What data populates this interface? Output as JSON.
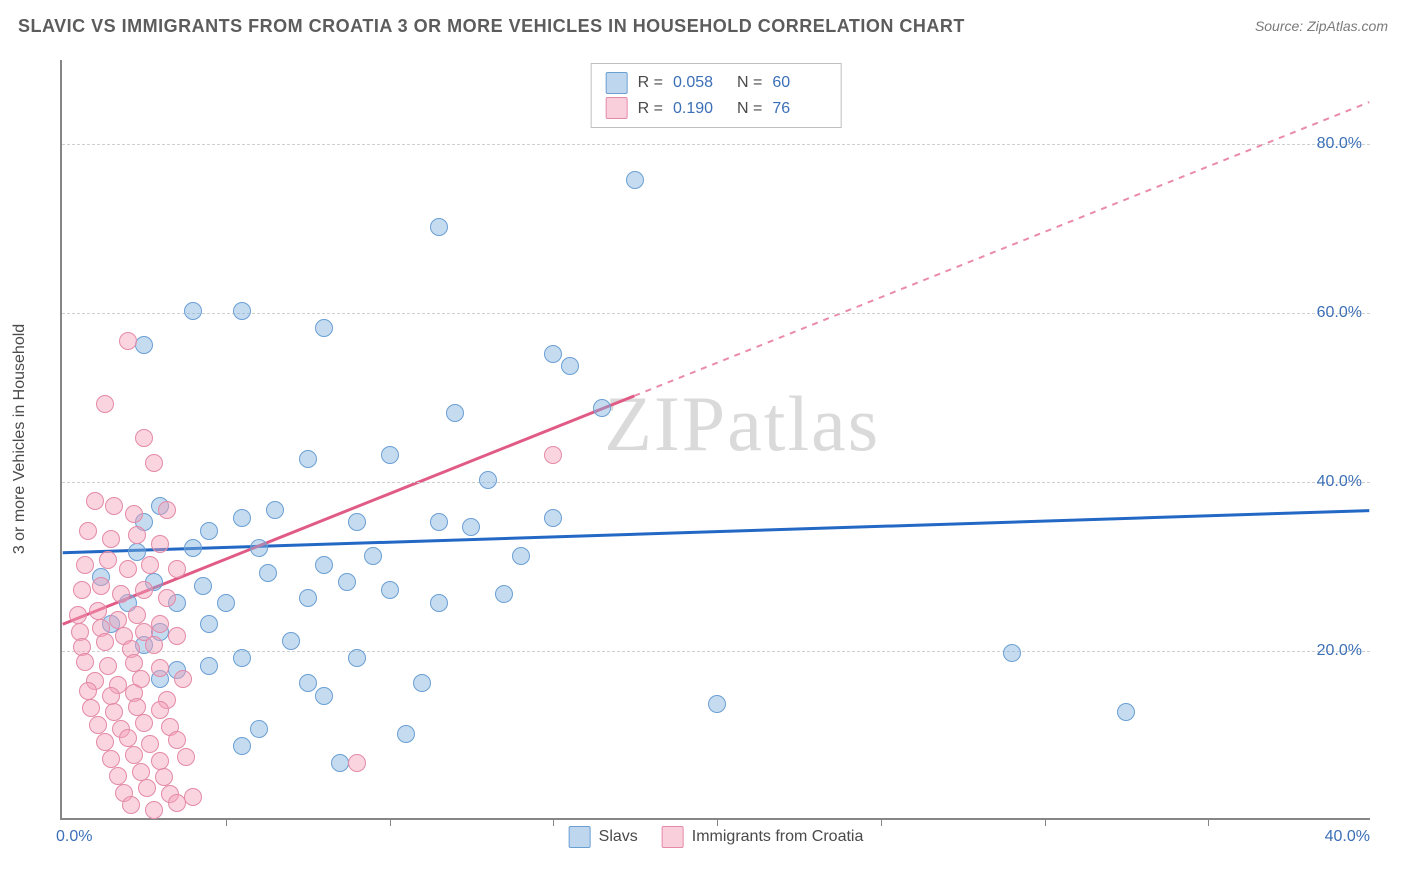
{
  "title": "SLAVIC VS IMMIGRANTS FROM CROATIA 3 OR MORE VEHICLES IN HOUSEHOLD CORRELATION CHART",
  "source_label": "Source: ",
  "source_value": "ZipAtlas.com",
  "y_axis_title": "3 or more Vehicles in Household",
  "watermark": "ZIPatlas",
  "chart": {
    "type": "scatter",
    "background_color": "#ffffff",
    "grid_color": "#cfcfcf",
    "axis_color": "#868686",
    "xlim": [
      0,
      40
    ],
    "ylim": [
      0,
      90
    ],
    "x_ticks_minor": [
      5,
      10,
      15,
      20,
      25,
      30,
      35
    ],
    "x_tick_labels": {
      "min": "0.0%",
      "max": "40.0%"
    },
    "y_gridlines": [
      20,
      40,
      60,
      80
    ],
    "y_tick_labels": [
      "20.0%",
      "40.0%",
      "60.0%",
      "80.0%"
    ],
    "tick_label_color": "#3b6fb6",
    "series": [
      {
        "name": "Slavs",
        "color_fill": "rgba(127,175,221,0.45)",
        "color_stroke": "#6a9fd4",
        "trend_color": "#2368c4",
        "trend_solid_end_x": 40,
        "trend": {
          "x1": 0,
          "y1": 31.5,
          "x2": 40,
          "y2": 36.5
        },
        "points": [
          [
            17.5,
            75.5
          ],
          [
            11.5,
            70
          ],
          [
            2.5,
            56
          ],
          [
            4,
            60
          ],
          [
            5.5,
            60
          ],
          [
            8,
            58
          ],
          [
            15,
            55
          ],
          [
            15.5,
            53.5
          ],
          [
            12,
            48
          ],
          [
            16.5,
            48.5
          ],
          [
            7.5,
            42.5
          ],
          [
            10,
            43
          ],
          [
            13,
            40
          ],
          [
            5.5,
            35.5
          ],
          [
            6.5,
            36.5
          ],
          [
            2.5,
            35
          ],
          [
            3,
            37
          ],
          [
            4.5,
            34
          ],
          [
            9,
            35
          ],
          [
            11.5,
            35
          ],
          [
            12.5,
            34.5
          ],
          [
            15,
            35.5
          ],
          [
            2.3,
            31.5
          ],
          [
            4,
            32
          ],
          [
            6,
            32
          ],
          [
            8,
            30
          ],
          [
            9.5,
            31
          ],
          [
            14,
            31
          ],
          [
            1.2,
            28.5
          ],
          [
            2.8,
            28
          ],
          [
            4.3,
            27.5
          ],
          [
            6.3,
            29
          ],
          [
            8.7,
            28
          ],
          [
            10,
            27
          ],
          [
            2,
            25.5
          ],
          [
            3.5,
            25.5
          ],
          [
            5,
            25.5
          ],
          [
            7.5,
            26
          ],
          [
            11.5,
            25.5
          ],
          [
            13.5,
            26.5
          ],
          [
            1.5,
            23
          ],
          [
            3,
            22
          ],
          [
            4.5,
            23
          ],
          [
            29,
            19.5
          ],
          [
            32.5,
            12.5
          ],
          [
            20,
            13.5
          ],
          [
            7.5,
            16
          ],
          [
            6,
            10.5
          ],
          [
            10.5,
            10
          ],
          [
            5.5,
            8.5
          ],
          [
            8.5,
            6.5
          ],
          [
            8,
            14.5
          ],
          [
            4.5,
            18
          ],
          [
            3,
            16.5
          ],
          [
            5.5,
            19
          ],
          [
            9,
            19
          ],
          [
            11,
            16
          ],
          [
            7,
            21
          ],
          [
            2.5,
            20.5
          ],
          [
            3.5,
            17.5
          ]
        ]
      },
      {
        "name": "Immigrants from Croatia",
        "color_fill": "rgba(244,160,185,0.45)",
        "color_stroke": "#e48aa8",
        "trend_color": "#e05b86",
        "trend_solid_end_x": 17.5,
        "trend": {
          "x1": 0,
          "y1": 23,
          "x2": 40,
          "y2": 85
        },
        "points": [
          [
            2,
            56.5
          ],
          [
            1.3,
            49
          ],
          [
            2.5,
            45
          ],
          [
            2.8,
            42
          ],
          [
            15,
            43
          ],
          [
            1,
            37.5
          ],
          [
            1.6,
            37
          ],
          [
            2.2,
            36
          ],
          [
            3.2,
            36.5
          ],
          [
            0.8,
            34
          ],
          [
            1.5,
            33
          ],
          [
            2.3,
            33.5
          ],
          [
            3,
            32.5
          ],
          [
            0.7,
            30
          ],
          [
            1.4,
            30.5
          ],
          [
            2,
            29.5
          ],
          [
            2.7,
            30
          ],
          [
            3.5,
            29.5
          ],
          [
            0.6,
            27
          ],
          [
            1.2,
            27.5
          ],
          [
            1.8,
            26.5
          ],
          [
            2.5,
            27
          ],
          [
            3.2,
            26
          ],
          [
            0.5,
            24
          ],
          [
            1.1,
            24.5
          ],
          [
            1.7,
            23.5
          ],
          [
            2.3,
            24
          ],
          [
            3,
            23
          ],
          [
            0.55,
            22
          ],
          [
            1.2,
            22.5
          ],
          [
            1.9,
            21.5
          ],
          [
            2.5,
            22
          ],
          [
            3.5,
            21.5
          ],
          [
            0.6,
            20.2
          ],
          [
            1.3,
            20.8
          ],
          [
            2.1,
            20
          ],
          [
            2.8,
            20.5
          ],
          [
            0.7,
            18.5
          ],
          [
            1.4,
            18
          ],
          [
            2.2,
            18.3
          ],
          [
            3,
            17.8
          ],
          [
            3.7,
            16.5
          ],
          [
            1,
            16.2
          ],
          [
            1.7,
            15.8
          ],
          [
            2.4,
            16.5
          ],
          [
            0.8,
            15
          ],
          [
            1.5,
            14.5
          ],
          [
            2.2,
            14.8
          ],
          [
            3.2,
            14
          ],
          [
            0.9,
            13
          ],
          [
            1.6,
            12.5
          ],
          [
            2.3,
            13.2
          ],
          [
            3,
            12.8
          ],
          [
            1.1,
            11
          ],
          [
            1.8,
            10.5
          ],
          [
            2.5,
            11.3
          ],
          [
            3.3,
            10.8
          ],
          [
            1.3,
            9
          ],
          [
            2,
            9.5
          ],
          [
            2.7,
            8.8
          ],
          [
            3.5,
            9.2
          ],
          [
            1.5,
            7
          ],
          [
            2.2,
            7.5
          ],
          [
            3,
            6.8
          ],
          [
            3.8,
            7.2
          ],
          [
            1.7,
            5
          ],
          [
            2.4,
            5.5
          ],
          [
            3.1,
            4.8
          ],
          [
            1.9,
            3
          ],
          [
            2.6,
            3.5
          ],
          [
            3.3,
            2.8
          ],
          [
            4,
            2.5
          ],
          [
            2.1,
            1.5
          ],
          [
            2.8,
            1
          ],
          [
            3.5,
            1.8
          ],
          [
            9,
            6.5
          ]
        ]
      }
    ]
  },
  "legend_top": {
    "rows": [
      {
        "r_label": "R =",
        "r_value": "0.058",
        "n_label": "N =",
        "n_value": "60"
      },
      {
        "r_label": "R =",
        "r_value": "0.190",
        "n_label": "N =",
        "n_value": "76"
      }
    ]
  },
  "legend_bottom": {
    "items": [
      "Slavs",
      "Immigrants from Croatia"
    ]
  }
}
